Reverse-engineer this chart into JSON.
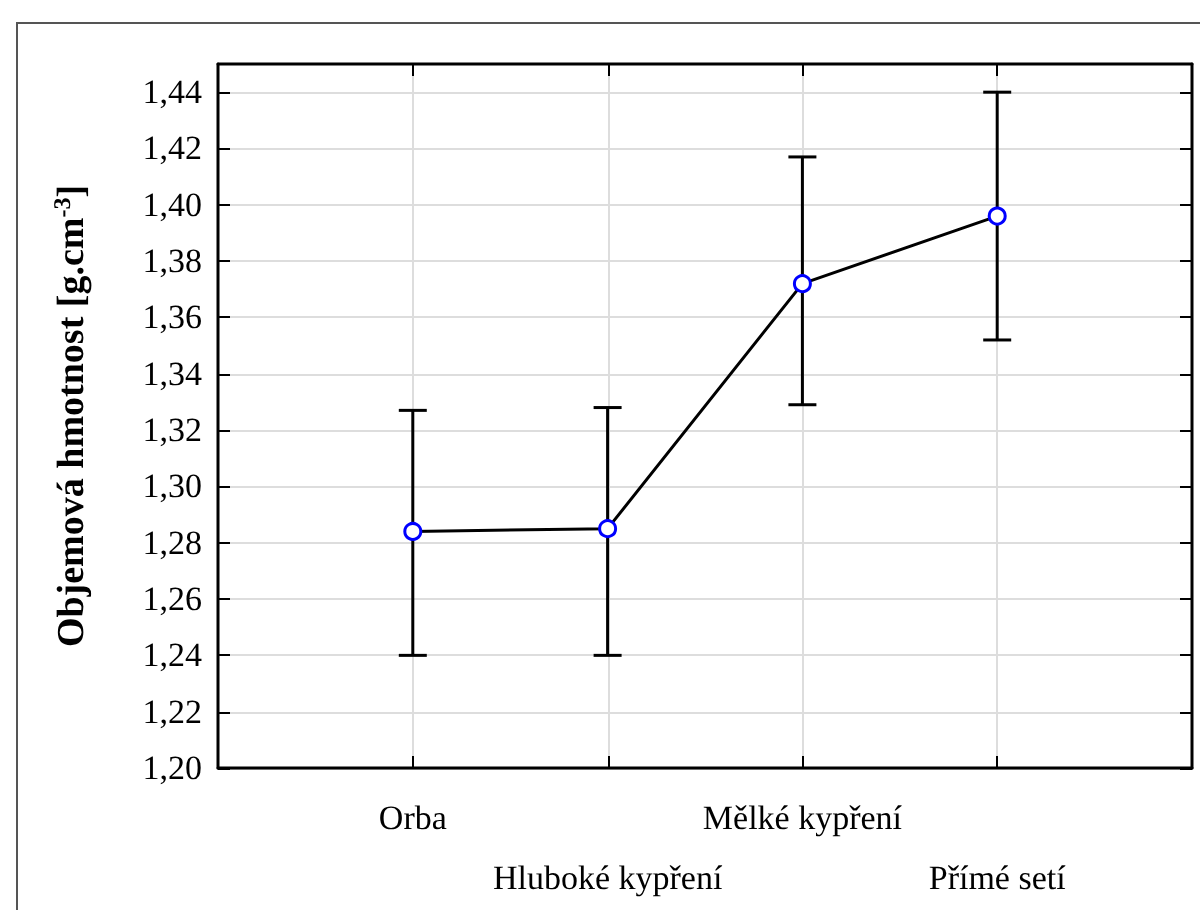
{
  "chart_data": {
    "type": "line",
    "ylabel": "Objemová hmotnost [g.cm$^{-3}$]",
    "categories": [
      "Orba",
      "Hluboké kypření",
      "Mělké kypření",
      "Přímé setí"
    ],
    "series": [
      {
        "color": "#000000",
        "values": [
          1.284,
          1.285,
          1.372,
          1.396
        ],
        "errors": [
          [
            1.24,
            1.327
          ],
          [
            1.24,
            1.328
          ],
          [
            1.329,
            1.417
          ],
          [
            1.352,
            1.44
          ]
        ]
      }
    ],
    "ylim": [
      1.2,
      1.45
    ],
    "yticks": [
      {
        "value": 1.2,
        "label": "1,20"
      },
      {
        "value": 1.22,
        "label": "1,22"
      },
      {
        "value": 1.24,
        "label": "1,24"
      },
      {
        "value": 1.26,
        "label": "1,26"
      },
      {
        "value": 1.28,
        "label": "1,28"
      },
      {
        "value": 1.3,
        "label": "1,30"
      },
      {
        "value": 1.32,
        "label": "1,32"
      },
      {
        "value": 1.34,
        "label": "1,34"
      },
      {
        "value": 1.36,
        "label": "1,36"
      },
      {
        "value": 1.38,
        "label": "1,38"
      },
      {
        "value": 1.4,
        "label": "1,40"
      },
      {
        "value": 1.42,
        "label": "1,42"
      },
      {
        "value": 1.44,
        "label": "1,44"
      }
    ],
    "grid": true,
    "marker": "circle",
    "line_style": "solid"
  }
}
